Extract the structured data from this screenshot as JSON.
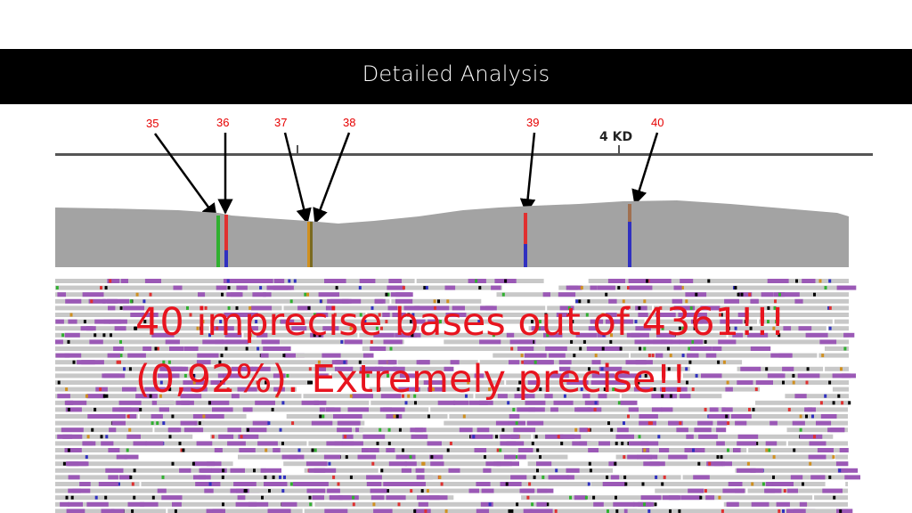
{
  "header": {
    "title": "Detailed Analysis"
  },
  "ruler": {
    "label": "4 KD"
  },
  "markers": [
    {
      "label": "35",
      "tick": "35"
    },
    {
      "label": "36",
      "tick": "36"
    },
    {
      "label": "37",
      "tick": "37"
    },
    {
      "label": "38",
      "tick": "38"
    },
    {
      "label": "39",
      "tick": "39"
    },
    {
      "label": "40",
      "tick": "40"
    }
  ],
  "annotation": {
    "line1": "40 imprecise bases out of 4361!!!",
    "line2": "(0,92%). Extremely precise!!"
  },
  "colors": {
    "header_bg": "#000000",
    "coverage": "#a3a3a3",
    "read": "#c8c8c8",
    "insertion": "#9b59b6",
    "marker_text": "#e60000",
    "annotation_text": "#e8141e",
    "variant_a": "#e03030",
    "variant_c": "#3030c0",
    "variant_g": "#30b030",
    "variant_t": "#d09020"
  }
}
